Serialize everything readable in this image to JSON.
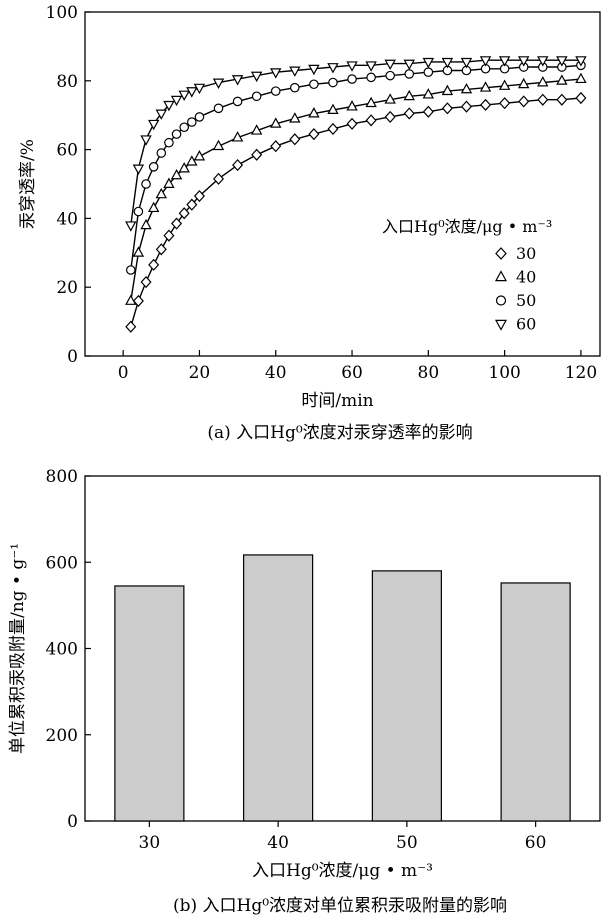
{
  "chart_data": [
    {
      "type": "line",
      "panel": "a",
      "caption": "(a) 入口Hg⁰浓度对汞穿透率的影响",
      "xlabel": "时间/min",
      "ylabel": "汞穿透率/%",
      "xlim": [
        -10,
        125
      ],
      "ylim": [
        0,
        100
      ],
      "xticks": [
        0,
        20,
        40,
        60,
        80,
        100,
        120
      ],
      "yticks": [
        0,
        20,
        40,
        60,
        80,
        100
      ],
      "grid": false,
      "legend_title": "入口Hg⁰浓度/μg • m⁻³",
      "legend_position": "right-middle",
      "x": [
        2,
        4,
        6,
        8,
        10,
        12,
        14,
        16,
        18,
        20,
        25,
        30,
        35,
        40,
        45,
        50,
        55,
        60,
        65,
        70,
        75,
        80,
        85,
        90,
        95,
        100,
        105,
        110,
        115,
        120
      ],
      "series": [
        {
          "name": "30",
          "marker": "diamond",
          "values": [
            8.5,
            16,
            21.5,
            26.5,
            31,
            35,
            38.5,
            41.5,
            44,
            46.5,
            51.5,
            55.5,
            58.5,
            61,
            63,
            64.5,
            66,
            67.5,
            68.5,
            69.5,
            70.5,
            71,
            72,
            72.5,
            73,
            73.5,
            74,
            74.5,
            74.5,
            75
          ]
        },
        {
          "name": "40",
          "marker": "triangle-up",
          "values": [
            16,
            30,
            38,
            43,
            47,
            50,
            52.5,
            54.5,
            56.5,
            58,
            61,
            63.5,
            65.5,
            67.5,
            69,
            70.5,
            71.5,
            72.5,
            73.5,
            74.5,
            75.5,
            76,
            77,
            77.5,
            78,
            78.5,
            79,
            79.5,
            80,
            80.5
          ]
        },
        {
          "name": "50",
          "marker": "circle",
          "values": [
            25,
            42,
            50,
            55,
            59,
            62,
            64.5,
            66.5,
            68,
            69.5,
            72,
            74,
            75.5,
            77,
            78,
            79,
            79.5,
            80.5,
            81,
            81.5,
            82,
            82.5,
            83,
            83,
            83.5,
            83.5,
            84,
            84,
            84,
            84.5
          ]
        },
        {
          "name": "60",
          "marker": "triangle-down",
          "values": [
            38,
            54.5,
            63,
            67.5,
            70.5,
            73,
            74.5,
            76,
            77,
            78,
            79.5,
            80.5,
            81.5,
            82.5,
            83,
            83.5,
            84,
            84.5,
            84.5,
            85,
            85,
            85.5,
            85.5,
            85.5,
            86,
            86,
            86,
            86,
            86,
            86
          ]
        }
      ]
    },
    {
      "type": "bar",
      "panel": "b",
      "caption": "(b) 入口Hg⁰浓度对单位累积汞吸附量的影响",
      "xlabel": "入口Hg⁰浓度/μg • m⁻³",
      "ylabel": "单位累积汞吸附量/ng • g⁻¹",
      "ylim": [
        0,
        800
      ],
      "yticks": [
        0,
        200,
        400,
        600,
        800
      ],
      "grid": false,
      "categories": [
        "30",
        "40",
        "50",
        "60"
      ],
      "values": [
        545,
        617,
        580,
        552
      ],
      "bar_color": "#cccccc"
    }
  ]
}
